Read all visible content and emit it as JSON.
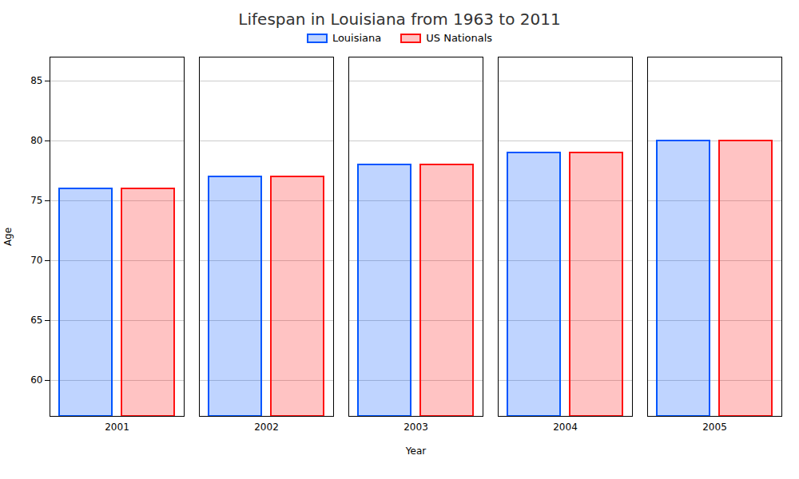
{
  "chart_data": {
    "type": "bar",
    "title": "Lifespan in Louisiana from 1963 to 2011",
    "xlabel": "Year",
    "ylabel": "Age",
    "categories": [
      "2001",
      "2002",
      "2003",
      "2004",
      "2005"
    ],
    "series": [
      {
        "name": "Louisiana",
        "color": "#0055ff",
        "values": [
          76,
          77,
          78,
          79,
          80
        ]
      },
      {
        "name": "US Nationals",
        "color": "#ff1111",
        "values": [
          76,
          77,
          78,
          79,
          80
        ]
      }
    ],
    "ylim": [
      57,
      87
    ],
    "yticks": [
      60,
      65,
      70,
      75,
      80,
      85
    ],
    "grid": true,
    "legend": "top"
  }
}
